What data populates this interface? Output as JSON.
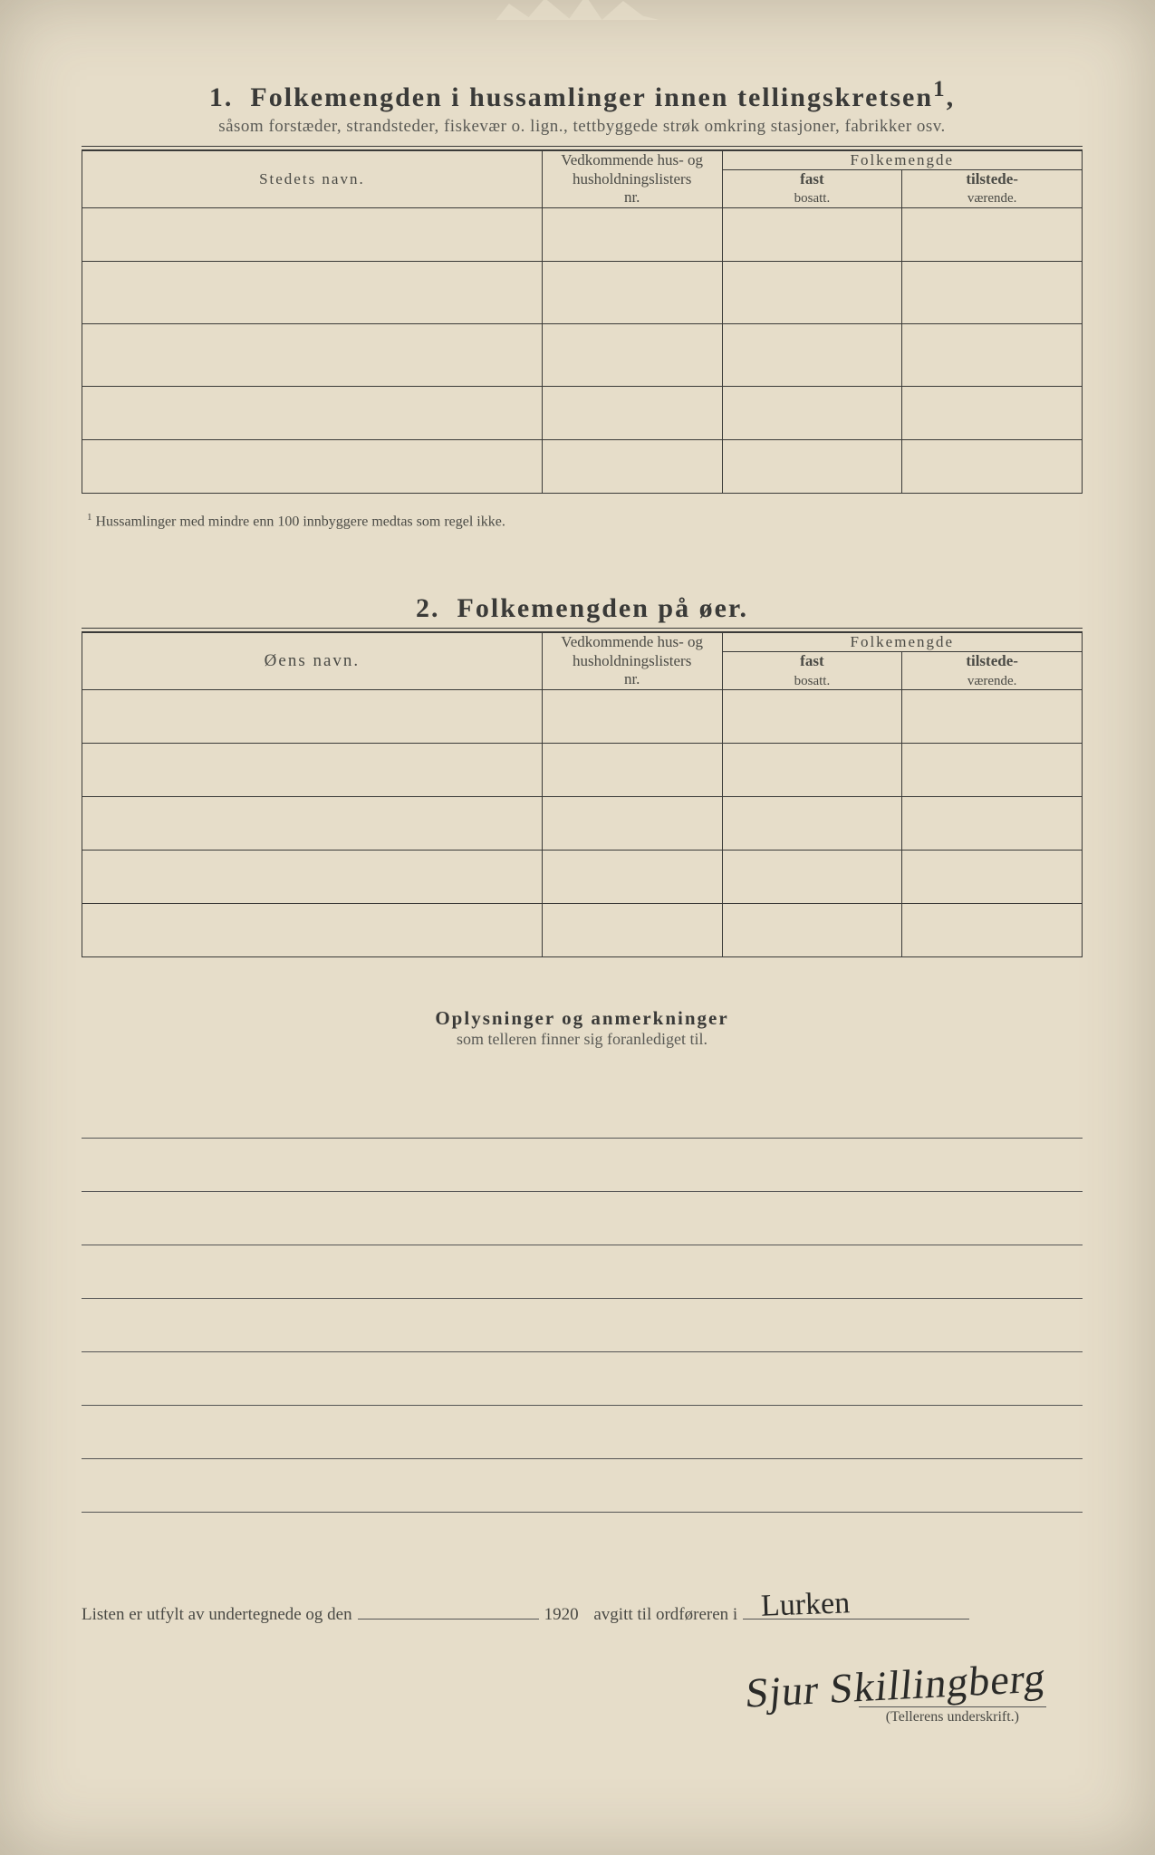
{
  "section1": {
    "number": "1.",
    "title": "Folkemengden i hussamlinger innen tellingskretsen",
    "title_sup": "1",
    "subtitle": "såsom forstæder, strandsteder, fiskevær o. lign., tettbyggede strøk omkring stasjoner, fabrikker osv.",
    "columns": {
      "name": "Stedets navn.",
      "nr_l1": "Vedkommende hus- og",
      "nr_l2": "husholdningslisters",
      "nr_l3": "nr.",
      "folk": "Folkemengde",
      "fast_l1": "fast",
      "fast_l2": "bosatt.",
      "til_l1": "tilstede-",
      "til_l2": "værende."
    },
    "footnote": "Hussamlinger med mindre enn 100 innbyggere medtas som regel ikke."
  },
  "section2": {
    "number": "2.",
    "title": "Folkemengden på øer.",
    "columns": {
      "name": "Øens navn.",
      "nr_l1": "Vedkommende hus- og",
      "nr_l2": "husholdningslisters",
      "nr_l3": "nr.",
      "folk": "Folkemengde",
      "fast_l1": "fast",
      "fast_l2": "bosatt.",
      "til_l1": "tilstede-",
      "til_l2": "værende."
    }
  },
  "notes": {
    "title": "Oplysninger og anmerkninger",
    "subtitle": "som telleren finner sig foranlediget til."
  },
  "footer": {
    "pre": "Listen er utfylt av undertegnede og den",
    "year": "1920",
    "mid": "avgitt til ordføreren i",
    "place_handwritten": "Lurken",
    "signature": "Sjur Skillingberg",
    "sig_label": "(Tellerens underskrift.)"
  }
}
